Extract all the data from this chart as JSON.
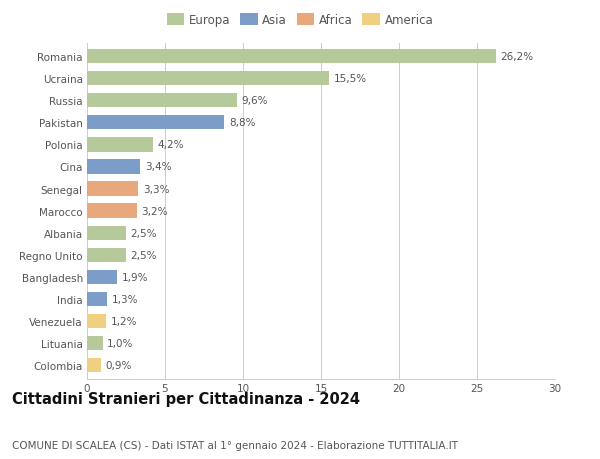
{
  "countries": [
    "Romania",
    "Ucraina",
    "Russia",
    "Pakistan",
    "Polonia",
    "Cina",
    "Senegal",
    "Marocco",
    "Albania",
    "Regno Unito",
    "Bangladesh",
    "India",
    "Venezuela",
    "Lituania",
    "Colombia"
  ],
  "values": [
    26.2,
    15.5,
    9.6,
    8.8,
    4.2,
    3.4,
    3.3,
    3.2,
    2.5,
    2.5,
    1.9,
    1.3,
    1.2,
    1.0,
    0.9
  ],
  "labels": [
    "26,2%",
    "15,5%",
    "9,6%",
    "8,8%",
    "4,2%",
    "3,4%",
    "3,3%",
    "3,2%",
    "2,5%",
    "2,5%",
    "1,9%",
    "1,3%",
    "1,2%",
    "1,0%",
    "0,9%"
  ],
  "colors": [
    "#b5c99a",
    "#b5c99a",
    "#b5c99a",
    "#7b9dc8",
    "#b5c99a",
    "#7b9dc8",
    "#e8a87c",
    "#e8a87c",
    "#b5c99a",
    "#b5c99a",
    "#7b9dc8",
    "#7b9dc8",
    "#f0d080",
    "#b5c99a",
    "#f0d080"
  ],
  "legend_labels": [
    "Europa",
    "Asia",
    "Africa",
    "America"
  ],
  "legend_colors": [
    "#b5c99a",
    "#7b9dc8",
    "#e8a87c",
    "#f0d080"
  ],
  "title": "Cittadini Stranieri per Cittadinanza - 2024",
  "subtitle": "COMUNE DI SCALEA (CS) - Dati ISTAT al 1° gennaio 2024 - Elaborazione TUTTITALIA.IT",
  "xlim": [
    0,
    30
  ],
  "xticks": [
    0,
    5,
    10,
    15,
    20,
    25,
    30
  ],
  "background_color": "#ffffff",
  "grid_color": "#cccccc",
  "bar_height": 0.65,
  "title_fontsize": 10.5,
  "subtitle_fontsize": 7.5,
  "label_fontsize": 7.5,
  "tick_fontsize": 7.5,
  "legend_fontsize": 8.5
}
